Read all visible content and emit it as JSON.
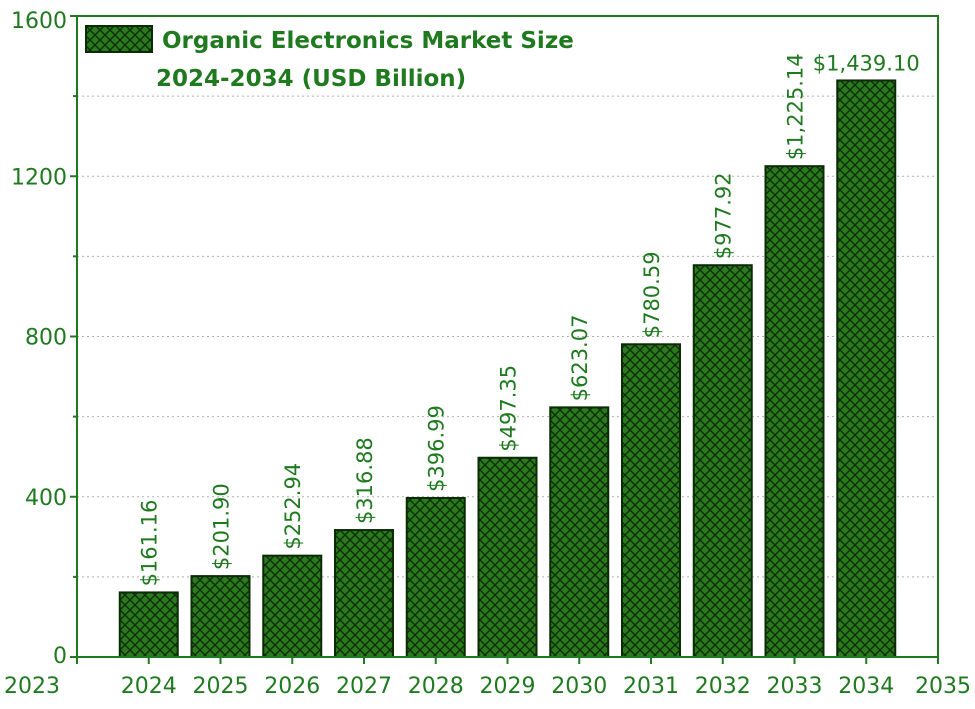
{
  "colors": {
    "axis": "#1f7a1f",
    "text": "#1f7a1f",
    "bar_fill": "#2b7a1d",
    "bar_stroke": "#0b2a06",
    "grid": "#b0b0b0",
    "hatch": "#0c2f07"
  },
  "chart_data": {
    "type": "bar",
    "title": "",
    "xlabel": "",
    "ylabel": "",
    "x": [
      2024,
      2025,
      2026,
      2027,
      2028,
      2029,
      2030,
      2031,
      2032,
      2033,
      2034
    ],
    "values": [
      161.16,
      201.9,
      252.94,
      316.88,
      396.99,
      497.35,
      623.07,
      780.59,
      977.92,
      1225.14,
      1439.1
    ],
    "data_labels": [
      "$161.16",
      "$201.90",
      "$252.94",
      "$316.88",
      "$396.99",
      "$497.35",
      "$623.07",
      "$780.59",
      "$977.92",
      "$1,225.14",
      "$1,439.10"
    ],
    "xlim": [
      2023,
      2035
    ],
    "ylim": [
      0,
      1600
    ],
    "x_ticks": [
      2023,
      2024,
      2025,
      2026,
      2027,
      2028,
      2029,
      2030,
      2031,
      2032,
      2033,
      2034,
      2035
    ],
    "y_ticks": [
      0,
      400,
      800,
      1200,
      1600
    ],
    "grid": "horizontal-dotted",
    "legend": {
      "placement": "top-left",
      "line1": "Organic Electronics Market Size",
      "line2": "2024-2034 (USD Billion)"
    }
  }
}
